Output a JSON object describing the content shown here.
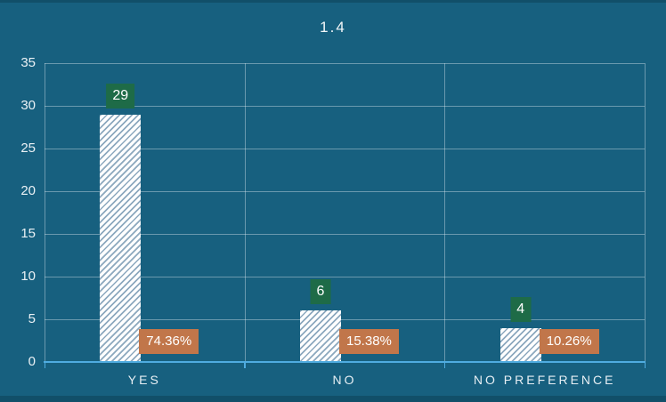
{
  "page": {
    "background": "#17607F",
    "edge_strip_color": "#114F69"
  },
  "chart_data": {
    "type": "bar",
    "title": "1.4",
    "categories": [
      "YES",
      "NO",
      "NO PREFERENCE"
    ],
    "values": [
      29,
      6,
      4
    ],
    "value_labels": [
      "29",
      "6",
      "4"
    ],
    "percent_labels": [
      "74.36%",
      "15.38%",
      "10.26%"
    ],
    "xlabel": "",
    "ylabel": "",
    "ylim": [
      0,
      35
    ],
    "y_ticks": [
      0,
      5,
      10,
      15,
      20,
      25,
      30,
      35
    ],
    "grid": true,
    "legend": false,
    "colors": {
      "background": "#17607F",
      "value_box": "#1E6B47",
      "percent_box": "#C1764A",
      "bar_fill": "#FFFFFF",
      "bar_hatch": "#8CA8BE",
      "gridline": "rgba(222,233,240,0.42)",
      "baseline": "#4FACE0",
      "label_text": "#FFFFFF",
      "axis_text": "#EAF1F5"
    }
  }
}
